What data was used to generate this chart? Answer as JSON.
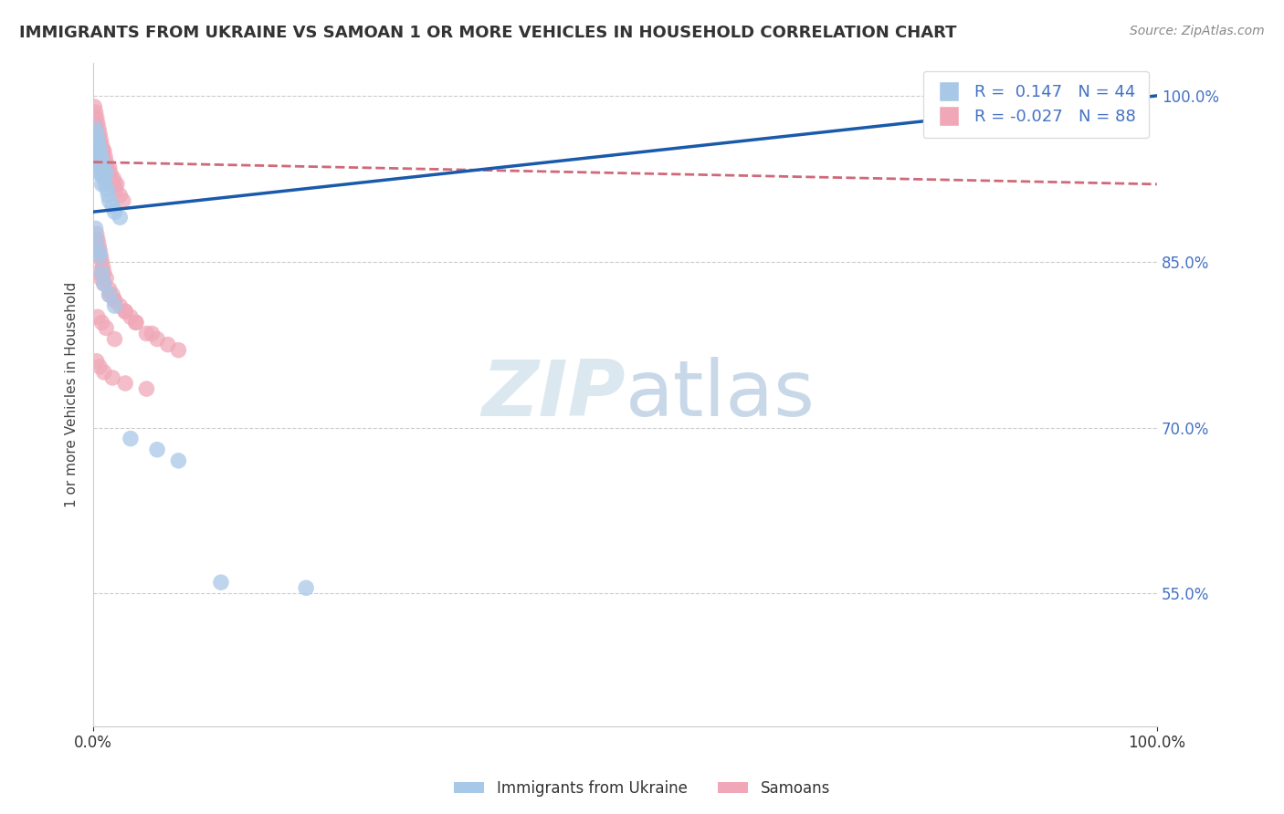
{
  "title": "IMMIGRANTS FROM UKRAINE VS SAMOAN 1 OR MORE VEHICLES IN HOUSEHOLD CORRELATION CHART",
  "source": "Source: ZipAtlas.com",
  "ylabel": "1 or more Vehicles in Household",
  "xlim": [
    0.0,
    1.0
  ],
  "ylim": [
    0.43,
    1.03
  ],
  "yticks": [
    0.55,
    0.7,
    0.85,
    1.0
  ],
  "ytick_labels": [
    "55.0%",
    "70.0%",
    "85.0%",
    "100.0%"
  ],
  "legend_ukraine_r": "0.147",
  "legend_ukraine_n": "44",
  "legend_samoan_r": "-0.027",
  "legend_samoan_n": "88",
  "ukraine_color": "#a8c8e8",
  "samoan_color": "#f0a8b8",
  "ukraine_line_color": "#1a5aaa",
  "samoan_line_color": "#d06878",
  "background_color": "#ffffff",
  "watermark_text": "ZIPatlas",
  "watermark_color": "#dce8f0",
  "title_fontsize": 13,
  "source_fontsize": 10,
  "legend_fontsize": 13,
  "ukraine_x": [
    0.001,
    0.002,
    0.002,
    0.003,
    0.003,
    0.003,
    0.004,
    0.004,
    0.004,
    0.005,
    0.005,
    0.005,
    0.006,
    0.006,
    0.007,
    0.007,
    0.007,
    0.008,
    0.008,
    0.009,
    0.01,
    0.01,
    0.011,
    0.012,
    0.013,
    0.014,
    0.015,
    0.018,
    0.02,
    0.025,
    0.002,
    0.003,
    0.005,
    0.006,
    0.008,
    0.01,
    0.015,
    0.02,
    0.035,
    0.06,
    0.08,
    0.12,
    0.2,
    0.85
  ],
  "ukraine_y": [
    0.96,
    0.95,
    0.97,
    0.965,
    0.945,
    0.94,
    0.96,
    0.94,
    0.935,
    0.955,
    0.945,
    0.93,
    0.95,
    0.935,
    0.945,
    0.93,
    0.94,
    0.94,
    0.92,
    0.93,
    0.925,
    0.935,
    0.92,
    0.93,
    0.915,
    0.91,
    0.905,
    0.9,
    0.895,
    0.89,
    0.88,
    0.87,
    0.86,
    0.855,
    0.84,
    0.83,
    0.82,
    0.81,
    0.69,
    0.68,
    0.67,
    0.56,
    0.555,
    1.0
  ],
  "samoan_x": [
    0.001,
    0.001,
    0.002,
    0.002,
    0.002,
    0.002,
    0.003,
    0.003,
    0.003,
    0.003,
    0.004,
    0.004,
    0.004,
    0.004,
    0.005,
    0.005,
    0.005,
    0.005,
    0.006,
    0.006,
    0.006,
    0.006,
    0.007,
    0.007,
    0.007,
    0.008,
    0.008,
    0.008,
    0.009,
    0.009,
    0.01,
    0.01,
    0.01,
    0.011,
    0.012,
    0.012,
    0.013,
    0.013,
    0.014,
    0.015,
    0.015,
    0.016,
    0.017,
    0.018,
    0.019,
    0.02,
    0.021,
    0.022,
    0.025,
    0.028,
    0.003,
    0.004,
    0.005,
    0.006,
    0.007,
    0.008,
    0.009,
    0.01,
    0.012,
    0.015,
    0.018,
    0.02,
    0.025,
    0.03,
    0.035,
    0.04,
    0.05,
    0.06,
    0.07,
    0.08,
    0.005,
    0.007,
    0.01,
    0.015,
    0.02,
    0.03,
    0.04,
    0.055,
    0.003,
    0.006,
    0.01,
    0.018,
    0.03,
    0.05,
    0.004,
    0.008,
    0.012,
    0.02
  ],
  "samoan_y": [
    0.99,
    0.98,
    0.985,
    0.975,
    0.97,
    0.965,
    0.98,
    0.97,
    0.96,
    0.955,
    0.975,
    0.965,
    0.955,
    0.945,
    0.97,
    0.96,
    0.95,
    0.94,
    0.965,
    0.955,
    0.945,
    0.935,
    0.96,
    0.95,
    0.94,
    0.955,
    0.945,
    0.935,
    0.95,
    0.94,
    0.95,
    0.94,
    0.93,
    0.945,
    0.94,
    0.93,
    0.935,
    0.925,
    0.93,
    0.935,
    0.925,
    0.93,
    0.925,
    0.92,
    0.925,
    0.92,
    0.915,
    0.92,
    0.91,
    0.905,
    0.875,
    0.87,
    0.865,
    0.86,
    0.855,
    0.85,
    0.845,
    0.84,
    0.835,
    0.825,
    0.82,
    0.815,
    0.81,
    0.805,
    0.8,
    0.795,
    0.785,
    0.78,
    0.775,
    0.77,
    0.84,
    0.835,
    0.83,
    0.82,
    0.815,
    0.805,
    0.795,
    0.785,
    0.76,
    0.755,
    0.75,
    0.745,
    0.74,
    0.735,
    0.8,
    0.795,
    0.79,
    0.78
  ],
  "ukraine_trend": [
    0.0,
    1.0
  ],
  "ukraine_trend_y": [
    0.895,
    1.0
  ],
  "samoan_trend": [
    0.0,
    1.0
  ],
  "samoan_trend_y": [
    0.94,
    0.92
  ]
}
